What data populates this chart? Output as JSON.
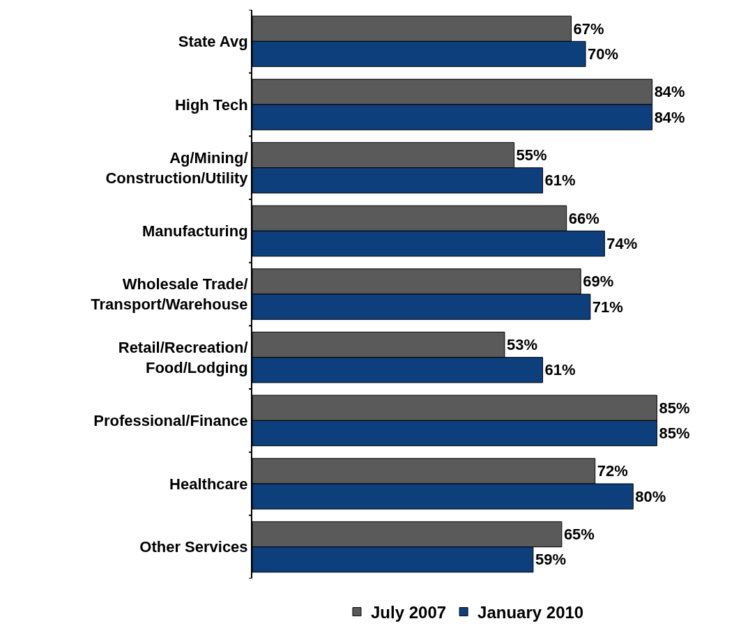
{
  "chart_data": {
    "type": "bar",
    "orientation": "horizontal",
    "legend": "bottom",
    "tick_labels": "y",
    "categories": [
      "State Avg",
      "High Tech",
      "Ag/Mining/\nConstruction/Utility",
      "Manufacturing",
      "Wholesale Trade/\nTransport/Warehouse",
      "Retail/Recreation/\nFood/Lodging",
      "Professional/Finance",
      "Healthcare",
      "Other Services"
    ],
    "series": [
      {
        "name": "July 2007",
        "color": "#5a5a5a",
        "values": [
          67,
          84,
          55,
          66,
          69,
          53,
          85,
          72,
          65
        ],
        "value_labels": [
          "67%",
          "84%",
          "55%",
          "66%",
          "69%",
          "53%",
          "85%",
          "72%",
          "65%"
        ]
      },
      {
        "name": "January 2010",
        "color": "#0c3f7c",
        "values": [
          70,
          84,
          61,
          74,
          71,
          61,
          85,
          80,
          59
        ],
        "value_labels": [
          "70%",
          "84%",
          "61%",
          "74%",
          "71%",
          "61%",
          "85%",
          "80%",
          "59%"
        ]
      }
    ]
  }
}
